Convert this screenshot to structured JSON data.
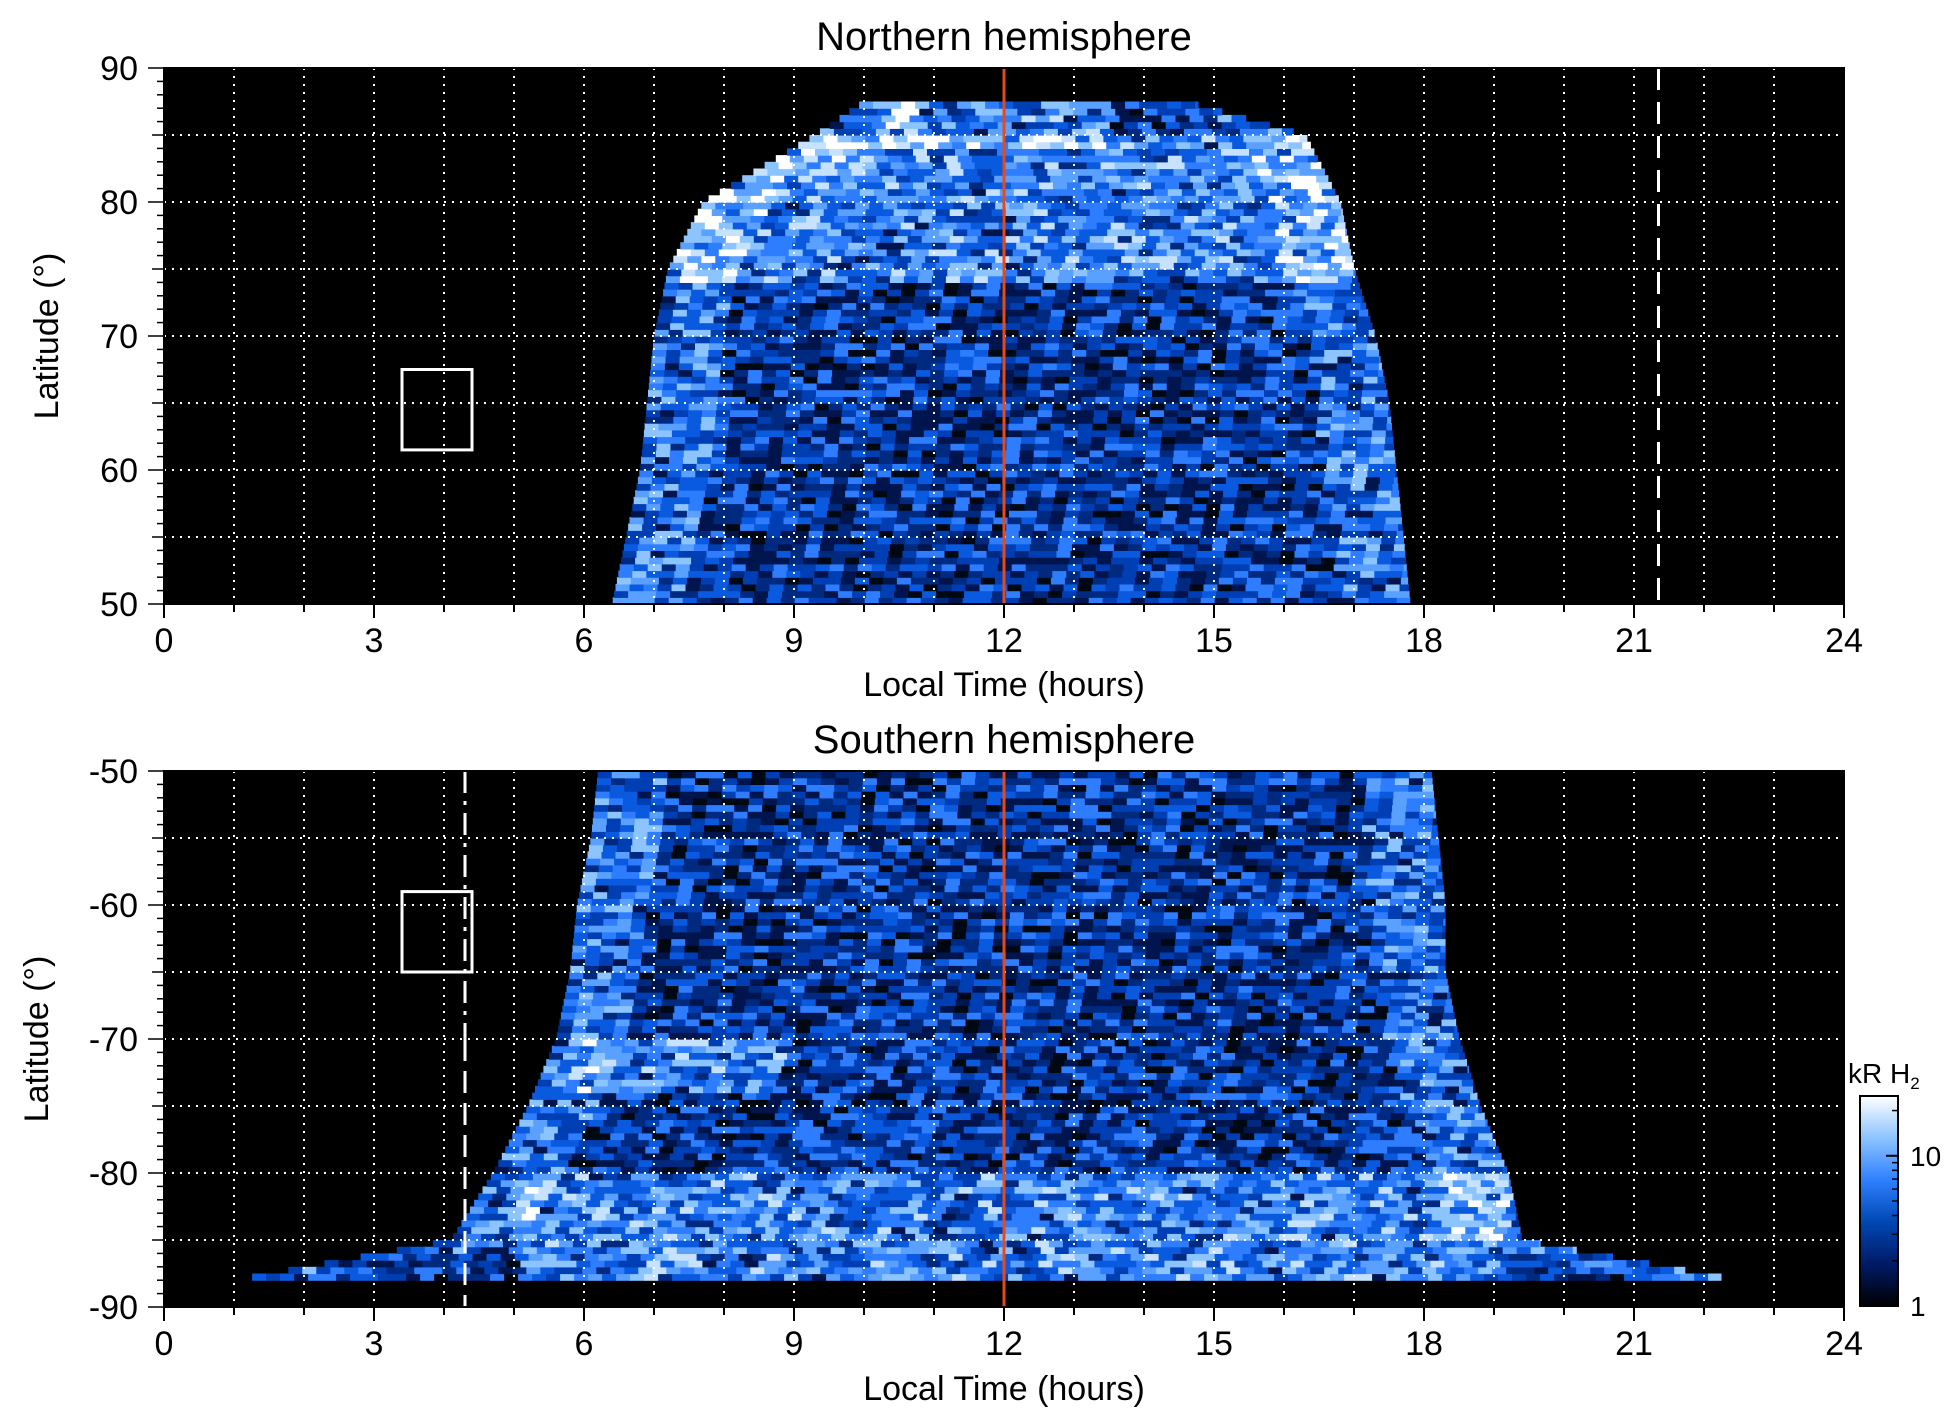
{
  "chart_data": [
    {
      "type": "heatmap",
      "title": "Northern hemisphere",
      "xlabel": "Local Time (hours)",
      "ylabel": "Latitude (°)",
      "xlim": [
        0,
        24
      ],
      "ylim": [
        50,
        90
      ],
      "xticks": [
        0,
        3,
        6,
        9,
        12,
        15,
        18,
        21,
        24
      ],
      "yticks": [
        50,
        60,
        70,
        80,
        90
      ],
      "grid": true,
      "background": "#000000",
      "emission_coverage": {
        "lat_edges": [
          50,
          55,
          60,
          65,
          70,
          75,
          80,
          85,
          87.5
        ],
        "lt_start": [
          6.4,
          6.6,
          6.8,
          6.9,
          7.0,
          7.2,
          7.7,
          9.3,
          10.0
        ],
        "lt_end": [
          17.8,
          17.7,
          17.6,
          17.5,
          17.3,
          17.0,
          16.8,
          16.3,
          14.6
        ]
      },
      "bright_ovals": [
        {
          "lt_start": 7.0,
          "lt_end": 17.0,
          "lat_min": 74,
          "lat_max": 85
        },
        {
          "lt_start": 10.3,
          "lt_end": 13.5,
          "lat_min": 84,
          "lat_max": 87.5
        }
      ],
      "annotations": [
        {
          "kind": "noon-line",
          "x": 12,
          "color": "#e64a19"
        },
        {
          "kind": "dashed-line",
          "x": 21.35,
          "color": "#ffffff"
        },
        {
          "kind": "box",
          "x": [
            3.4,
            4.4
          ],
          "y": [
            61.5,
            67.5
          ],
          "color": "#ffffff"
        }
      ]
    },
    {
      "type": "heatmap",
      "title": "Southern hemisphere",
      "xlabel": "Local Time (hours)",
      "ylabel": "Latitude (°)",
      "xlim": [
        0,
        24
      ],
      "ylim": [
        -90,
        -50
      ],
      "xticks": [
        0,
        3,
        6,
        9,
        12,
        15,
        18,
        21,
        24
      ],
      "yticks": [
        -50,
        -60,
        -70,
        -80,
        -90
      ],
      "grid": true,
      "background": "#000000",
      "emission_coverage": {
        "lat_edges": [
          -50,
          -55,
          -60,
          -65,
          -70,
          -75,
          -80,
          -85,
          -88
        ],
        "lt_start": [
          6.2,
          6.1,
          5.9,
          5.8,
          5.6,
          5.2,
          4.7,
          4.1,
          1.0
        ],
        "lt_end": [
          18.1,
          18.2,
          18.3,
          18.3,
          18.5,
          18.8,
          19.2,
          19.4,
          22.5
        ]
      },
      "bright_ovals": [
        {
          "lt_start": 5.8,
          "lt_end": 8.8,
          "lat_min": -74,
          "lat_max": -70
        },
        {
          "lt_start": 5.0,
          "lt_end": 19.2,
          "lat_min": -88,
          "lat_max": -80
        }
      ],
      "annotations": [
        {
          "kind": "noon-line",
          "x": 12,
          "color": "#e64a19"
        },
        {
          "kind": "dash-dot-line",
          "x": 4.3,
          "color": "#ffffff"
        },
        {
          "kind": "box",
          "x": [
            3.4,
            4.4
          ],
          "y": [
            -65,
            -59
          ],
          "color": "#ffffff"
        }
      ]
    }
  ],
  "colorbar": {
    "unit_main": "kR H",
    "unit_sub": "2",
    "scale": "log",
    "range": [
      1,
      25
    ],
    "ticks": [
      {
        "value": 1,
        "label": "1"
      },
      {
        "value": 10,
        "label": "10"
      }
    ],
    "colors": [
      "#000000",
      "#001a66",
      "#0047b3",
      "#2f80ff",
      "#8cc4ff",
      "#ffffff"
    ]
  }
}
